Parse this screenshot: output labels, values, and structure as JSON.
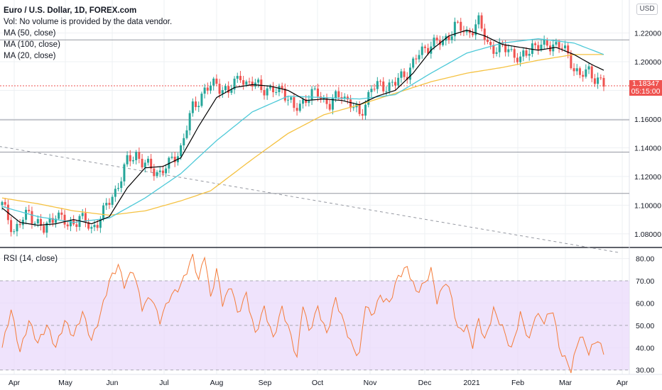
{
  "header": {
    "title": "Euro / U.S. Dollar, 1D, FOREX.com",
    "volume_note": "Vol: No volume is provided by the data vendor.",
    "ma50_label": "MA (50, close)",
    "ma100_label": "MA (100, close)",
    "ma20_label": "MA (20, close)"
  },
  "currency": "USD",
  "last_price": {
    "value": "1.18347",
    "countdown": "05:15:00"
  },
  "rsi_label": "RSI (14, close)",
  "colors": {
    "up": "#26a69a",
    "down": "#ef5350",
    "ma50": "#4dc9d8",
    "ma100": "#f5c242",
    "ma20": "#000000",
    "rsi": "#f57c3a",
    "rsi_band": "#ead9fb",
    "grid": "#eef0f3"
  },
  "chart_data": [
    {
      "type": "candlestick",
      "symbol": "EURUSD",
      "ylim": [
        1.071,
        1.243
      ],
      "y_ticks": [
        "1.22000",
        "1.20000",
        "1.18000",
        "1.16000",
        "1.14000",
        "1.12000",
        "1.10000",
        "1.08000"
      ],
      "x_ticks": [
        "Apr",
        "May",
        "Jun",
        "Jul",
        "Aug",
        "Sep",
        "Oct",
        "Nov",
        "Dec",
        "2021",
        "Feb",
        "Mar",
        "Apr"
      ],
      "close_path": [
        [
          0,
          1.1
        ],
        [
          4,
          1.082
        ],
        [
          9,
          1.095
        ],
        [
          14,
          1.082
        ],
        [
          18,
          1.095
        ],
        [
          22,
          1.085
        ],
        [
          26,
          1.092
        ],
        [
          30,
          1.083
        ],
        [
          34,
          1.095
        ],
        [
          38,
          1.11
        ],
        [
          42,
          1.13
        ],
        [
          45,
          1.136
        ],
        [
          47,
          1.13
        ],
        [
          50,
          1.125
        ],
        [
          53,
          1.123
        ],
        [
          56,
          1.128
        ],
        [
          60,
          1.14
        ],
        [
          64,
          1.168
        ],
        [
          68,
          1.18
        ],
        [
          72,
          1.185
        ],
        [
          76,
          1.178
        ],
        [
          80,
          1.192
        ],
        [
          82,
          1.183
        ],
        [
          86,
          1.185
        ],
        [
          90,
          1.178
        ],
        [
          94,
          1.182
        ],
        [
          98,
          1.166
        ],
        [
          102,
          1.175
        ],
        [
          106,
          1.178
        ],
        [
          110,
          1.17
        ],
        [
          114,
          1.178
        ],
        [
          118,
          1.168
        ],
        [
          120,
          1.162
        ],
        [
          124,
          1.182
        ],
        [
          128,
          1.183
        ],
        [
          132,
          1.185
        ],
        [
          136,
          1.193
        ],
        [
          140,
          1.205
        ],
        [
          144,
          1.213
        ],
        [
          148,
          1.213
        ],
        [
          152,
          1.225
        ],
        [
          156,
          1.22
        ],
        [
          160,
          1.227
        ],
        [
          163,
          1.213
        ],
        [
          166,
          1.208
        ],
        [
          170,
          1.21
        ],
        [
          174,
          1.2
        ],
        [
          178,
          1.212
        ],
        [
          182,
          1.21
        ],
        [
          185,
          1.213
        ],
        [
          188,
          1.21
        ],
        [
          191,
          1.2
        ],
        [
          194,
          1.19
        ],
        [
          197,
          1.193
        ],
        [
          200,
          1.188
        ],
        [
          202,
          1.1835
        ]
      ],
      "ma20": [
        [
          0,
          1.098
        ],
        [
          6,
          1.088
        ],
        [
          12,
          1.086
        ],
        [
          18,
          1.087
        ],
        [
          24,
          1.09
        ],
        [
          30,
          1.087
        ],
        [
          36,
          1.092
        ],
        [
          42,
          1.112
        ],
        [
          48,
          1.126
        ],
        [
          54,
          1.127
        ],
        [
          60,
          1.133
        ],
        [
          66,
          1.155
        ],
        [
          72,
          1.175
        ],
        [
          78,
          1.182
        ],
        [
          84,
          1.184
        ],
        [
          90,
          1.183
        ],
        [
          96,
          1.18
        ],
        [
          102,
          1.173
        ],
        [
          108,
          1.174
        ],
        [
          114,
          1.173
        ],
        [
          120,
          1.17
        ],
        [
          126,
          1.176
        ],
        [
          132,
          1.18
        ],
        [
          138,
          1.192
        ],
        [
          144,
          1.208
        ],
        [
          150,
          1.218
        ],
        [
          156,
          1.222
        ],
        [
          162,
          1.218
        ],
        [
          168,
          1.212
        ],
        [
          174,
          1.21
        ],
        [
          180,
          1.208
        ],
        [
          186,
          1.21
        ],
        [
          192,
          1.205
        ],
        [
          198,
          1.198
        ],
        [
          202,
          1.194
        ]
      ],
      "ma50": [
        [
          0,
          1.099
        ],
        [
          12,
          1.092
        ],
        [
          24,
          1.088
        ],
        [
          36,
          1.091
        ],
        [
          48,
          1.105
        ],
        [
          60,
          1.122
        ],
        [
          72,
          1.145
        ],
        [
          84,
          1.165
        ],
        [
          96,
          1.176
        ],
        [
          108,
          1.175
        ],
        [
          120,
          1.174
        ],
        [
          132,
          1.177
        ],
        [
          144,
          1.192
        ],
        [
          156,
          1.206
        ],
        [
          168,
          1.213
        ],
        [
          180,
          1.216
        ],
        [
          192,
          1.213
        ],
        [
          202,
          1.205
        ]
      ],
      "ma100": [
        [
          0,
          1.105
        ],
        [
          12,
          1.101
        ],
        [
          24,
          1.096
        ],
        [
          36,
          1.093
        ],
        [
          48,
          1.096
        ],
        [
          60,
          1.103
        ],
        [
          70,
          1.11
        ],
        [
          84,
          1.132
        ],
        [
          96,
          1.15
        ],
        [
          108,
          1.163
        ],
        [
          120,
          1.17
        ],
        [
          132,
          1.178
        ],
        [
          144,
          1.186
        ],
        [
          156,
          1.192
        ],
        [
          168,
          1.196
        ],
        [
          180,
          1.201
        ],
        [
          192,
          1.205
        ],
        [
          202,
          1.205
        ]
      ],
      "trendline": [
        [
          -1,
          1.141
        ],
        [
          207,
          1.067
        ]
      ],
      "horizontal_levels": [
        1.2152,
        1.1832,
        1.1595,
        1.137,
        1.1082
      ]
    },
    {
      "type": "line",
      "title": "RSI (14, close)",
      "ylim": [
        28,
        84
      ],
      "y_ticks": [
        "80.00",
        "70.00",
        "60.00",
        "50.00",
        "40.00",
        "30.00"
      ],
      "band": [
        30,
        70
      ],
      "midline": 50,
      "values_path": [
        [
          0,
          40
        ],
        [
          3,
          57
        ],
        [
          6,
          38
        ],
        [
          9,
          52
        ],
        [
          12,
          42
        ],
        [
          15,
          50
        ],
        [
          18,
          40
        ],
        [
          21,
          52
        ],
        [
          24,
          45
        ],
        [
          27,
          56
        ],
        [
          30,
          43
        ],
        [
          33,
          55
        ],
        [
          36,
          70
        ],
        [
          39,
          77
        ],
        [
          41,
          68
        ],
        [
          44,
          75
        ],
        [
          47,
          58
        ],
        [
          50,
          63
        ],
        [
          53,
          52
        ],
        [
          56,
          62
        ],
        [
          60,
          68
        ],
        [
          64,
          81
        ],
        [
          66,
          70
        ],
        [
          68,
          82
        ],
        [
          70,
          62
        ],
        [
          72,
          75
        ],
        [
          74,
          60
        ],
        [
          77,
          68
        ],
        [
          79,
          55
        ],
        [
          82,
          64
        ],
        [
          85,
          46
        ],
        [
          88,
          58
        ],
        [
          91,
          44
        ],
        [
          94,
          58
        ],
        [
          97,
          45
        ],
        [
          99,
          35
        ],
        [
          101,
          60
        ],
        [
          103,
          47
        ],
        [
          106,
          58
        ],
        [
          109,
          46
        ],
        [
          112,
          62
        ],
        [
          115,
          50
        ],
        [
          118,
          39
        ],
        [
          120,
          37
        ],
        [
          122,
          60
        ],
        [
          124,
          54
        ],
        [
          127,
          63
        ],
        [
          130,
          60
        ],
        [
          133,
          72
        ],
        [
          136,
          76
        ],
        [
          139,
          65
        ],
        [
          142,
          69
        ],
        [
          144,
          75
        ],
        [
          146,
          61
        ],
        [
          149,
          70
        ],
        [
          151,
          62
        ],
        [
          153,
          48
        ],
        [
          156,
          49
        ],
        [
          158,
          41
        ],
        [
          160,
          53
        ],
        [
          162,
          43
        ],
        [
          165,
          57
        ],
        [
          168,
          49
        ],
        [
          171,
          39
        ],
        [
          174,
          55
        ],
        [
          177,
          43
        ],
        [
          179,
          55
        ],
        [
          182,
          52
        ],
        [
          185,
          57
        ],
        [
          187,
          40
        ],
        [
          189,
          35
        ],
        [
          191,
          30
        ],
        [
          194,
          46
        ],
        [
          197,
          38
        ],
        [
          200,
          44
        ],
        [
          202,
          37
        ]
      ]
    }
  ]
}
